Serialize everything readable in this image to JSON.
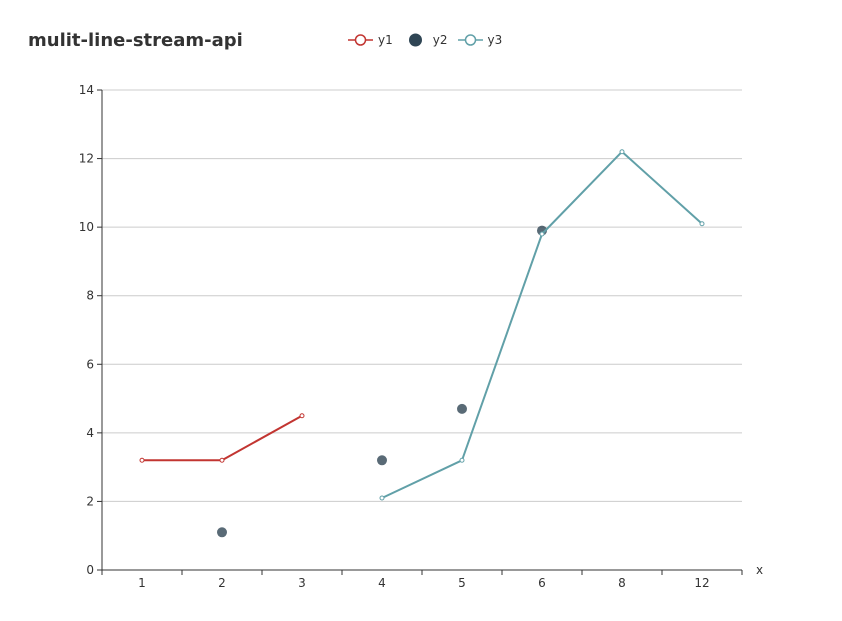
{
  "chart_data": {
    "type": "line",
    "title": "mulit-line-stream-api",
    "xlabel": "x",
    "ylabel": "",
    "categories": [
      "1",
      "2",
      "3",
      "4",
      "5",
      "6",
      "8",
      "12"
    ],
    "ylim": [
      0,
      14
    ],
    "yticks": [
      0,
      2,
      4,
      6,
      8,
      10,
      12,
      14
    ],
    "grid": true,
    "legend_position": "top",
    "series": [
      {
        "name": "y1",
        "type": "line",
        "color": "#c23531",
        "values": [
          3.2,
          3.2,
          4.5,
          null,
          null,
          null,
          null,
          null
        ]
      },
      {
        "name": "y2",
        "type": "scatter",
        "color": "#2f4554",
        "values": [
          null,
          1.1,
          null,
          3.2,
          4.7,
          9.9,
          null,
          null
        ]
      },
      {
        "name": "y3",
        "type": "line",
        "color": "#61a0a8",
        "values": [
          null,
          null,
          null,
          2.1,
          3.2,
          9.8,
          12.2,
          10.1
        ]
      }
    ]
  }
}
